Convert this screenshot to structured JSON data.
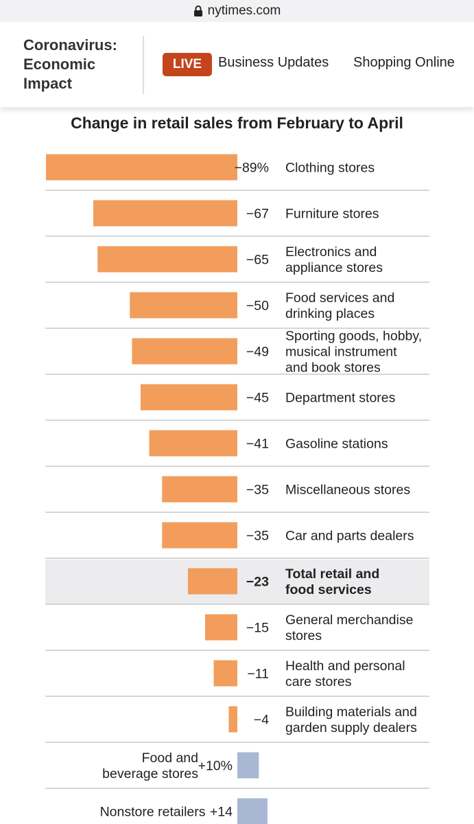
{
  "browser": {
    "url": "nytimes.com",
    "lock_icon": "lock-icon"
  },
  "header": {
    "section": "Coronavirus:\nEconomic\nImpact",
    "live_badge": "LIVE",
    "nav": [
      "Business Updates",
      "Shopping Online"
    ]
  },
  "colors": {
    "negative": "#f29d5c",
    "positive": "#a8b8d4",
    "highlight": "#ececef",
    "live": "#c4451c"
  },
  "chart_data": {
    "type": "bar",
    "title": "Change in retail sales from February to April",
    "unit": "%",
    "categories": [
      [
        "Clothing stores"
      ],
      [
        "Furniture stores"
      ],
      [
        "Electronics and",
        "appliance stores"
      ],
      [
        "Food services and",
        "drinking places"
      ],
      [
        "Sporting goods, hobby,",
        "musical instrument",
        "and book stores"
      ],
      [
        "Department stores"
      ],
      [
        "Gasoline stations"
      ],
      [
        "Miscellaneous stores"
      ],
      [
        "Car and parts dealers"
      ],
      [
        "Total retail and",
        "food services"
      ],
      [
        "General merchandise",
        "stores"
      ],
      [
        "Health and personal",
        "care stores"
      ],
      [
        "Building materials and",
        "garden supply dealers"
      ],
      [
        "Food and",
        "beverage stores"
      ],
      [
        "Nonstore retailers"
      ]
    ],
    "values": [
      -89,
      -67,
      -65,
      -50,
      -49,
      -45,
      -41,
      -35,
      -35,
      -23,
      -15,
      -11,
      -4,
      10,
      14
    ],
    "value_labels": [
      "−89%",
      "−67",
      "−65",
      "−50",
      "−49",
      "−45",
      "−41",
      "−35",
      "−35",
      "−23",
      "−15",
      "−11",
      "−4",
      "+10%",
      "+14"
    ],
    "highlighted": "Total retail and food services"
  }
}
